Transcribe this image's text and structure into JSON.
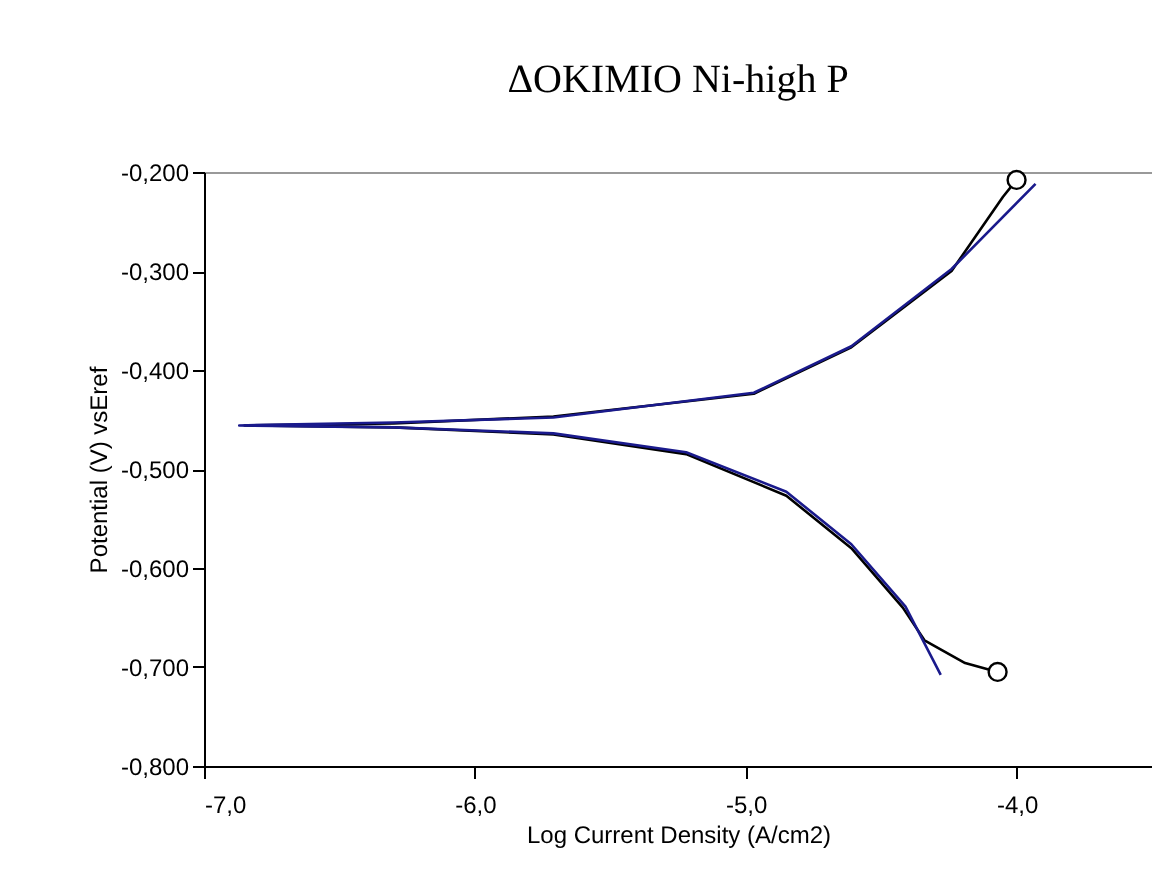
{
  "chart_data": {
    "type": "line",
    "title": "ΔOKIMIO Ni-high P",
    "xlabel": "Log Current Density (A/cm2)",
    "ylabel": "Potential (V) vsEref",
    "xlim": [
      -7.0,
      -3.5
    ],
    "xticks": [
      {
        "value": -7,
        "label": "-7,0"
      },
      {
        "value": -6,
        "label": "-6,0"
      },
      {
        "value": -5,
        "label": "-5,0"
      },
      {
        "value": -4,
        "label": "-4,0"
      }
    ],
    "ylim": [
      -0.8,
      -0.2
    ],
    "yticks": [
      {
        "value": -0.8,
        "label": "-0,800"
      },
      {
        "value": -0.7,
        "label": "-0,700"
      },
      {
        "value": -0.6,
        "label": "-0,600"
      },
      {
        "value": -0.5,
        "label": "-0,500"
      },
      {
        "value": -0.4,
        "label": "-0,400"
      },
      {
        "value": -0.3,
        "label": "-0,300"
      },
      {
        "value": -0.2,
        "label": "-0,200"
      }
    ],
    "grid": false,
    "line_style": "solid",
    "series": [
      {
        "color": "#000000",
        "marker": "none",
        "x": [
          -4.07,
          -4.19,
          -4.34,
          -4.42,
          -4.61,
          -4.85,
          -5.22,
          -5.71,
          -6.3,
          -6.85,
          -6.3,
          -5.71,
          -4.97,
          -4.61,
          -4.24,
          -4.05,
          -4.0
        ],
        "values": [
          -0.705,
          -0.696,
          -0.673,
          -0.64,
          -0.58,
          -0.527,
          -0.485,
          -0.465,
          -0.458,
          -0.456,
          -0.454,
          -0.447,
          -0.424,
          -0.377,
          -0.3,
          -0.225,
          -0.208
        ]
      },
      {
        "type": "scatter",
        "color": "#000000",
        "marker": "circle",
        "x": [
          -4.07,
          -4.0
        ],
        "values": [
          -0.705,
          -0.208
        ]
      },
      {
        "color": "#1a1a8c",
        "marker": "none",
        "x": [
          -4.28,
          -4.41,
          -4.61,
          -4.85,
          -5.22,
          -5.71,
          -6.3,
          -6.87,
          -6.3,
          -5.71,
          -4.97,
          -4.61,
          -4.24,
          -3.93
        ],
        "values": [
          -0.708,
          -0.639,
          -0.576,
          -0.523,
          -0.483,
          -0.464,
          -0.458,
          -0.456,
          -0.453,
          -0.448,
          -0.423,
          -0.376,
          -0.298,
          -0.212
        ]
      }
    ]
  }
}
